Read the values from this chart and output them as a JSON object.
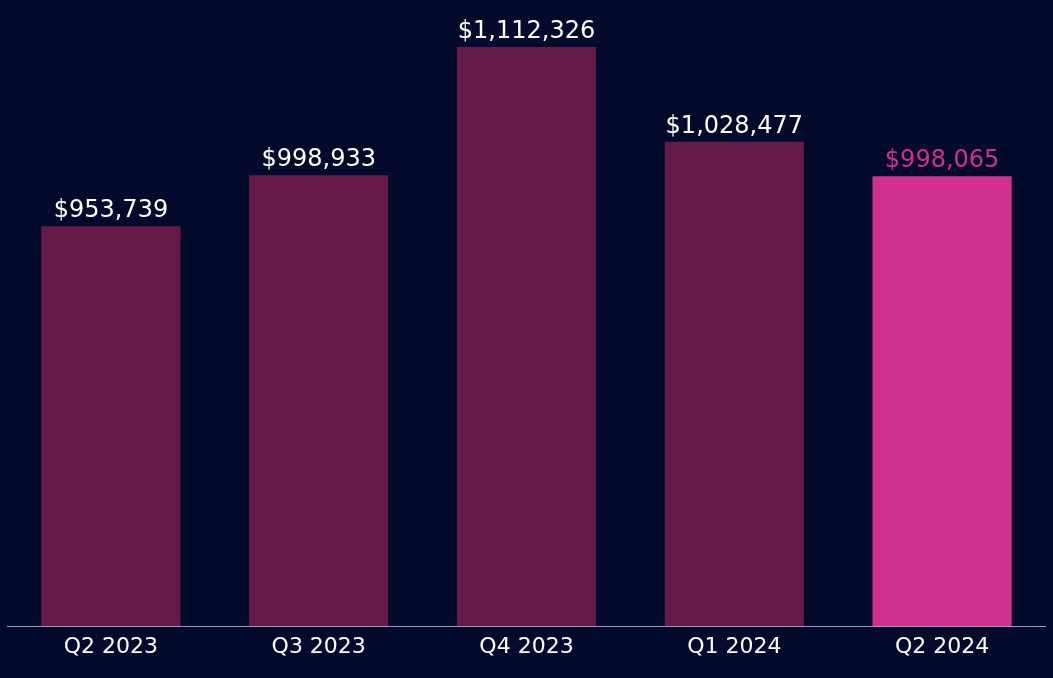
{
  "chart_data": {
    "type": "bar",
    "categories": [
      "Q2 2023",
      "Q3 2023",
      "Q4 2023",
      "Q1 2024",
      "Q2 2024"
    ],
    "values": [
      953739,
      998933,
      1112326,
      1028477,
      998065
    ],
    "colors": [
      "#661a4a",
      "#661a4a",
      "#661a4a",
      "#661a4a",
      "#d0318f"
    ],
    "value_labels": [
      "$953,739",
      "$998,933",
      "$1,112,326",
      "$1,028,477",
      "$998,065"
    ],
    "ylim": [
      600000,
      1154000
    ],
    "grid": false,
    "legend": false
  }
}
